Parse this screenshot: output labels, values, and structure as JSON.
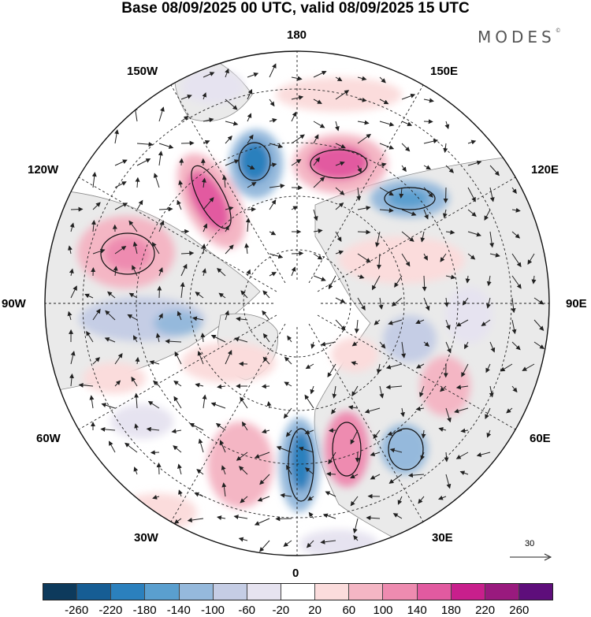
{
  "title": "Base 08/09/2025 00 UTC, valid 08/09/2025 15 UTC",
  "logo": "MODES",
  "logo_mark": "©",
  "longitude_labels": {
    "lon_180": "180",
    "lon_150E": "150E",
    "lon_120E": "120E",
    "lon_90E": "90E",
    "lon_60E": "60E",
    "lon_30E": "30E",
    "lon_0": "0",
    "lon_30W": "30W",
    "lon_60W": "60W",
    "lon_90W": "90W",
    "lon_120W": "120W",
    "lon_150W": "150W"
  },
  "reference_vector": {
    "value": "30"
  },
  "colorbar": {
    "colors": [
      "#0d3a5c",
      "#165d94",
      "#2b80bd",
      "#5a9fcf",
      "#95b9dc",
      "#c5cde5",
      "#e6e3f0",
      "#ffffff",
      "#fbdcdc",
      "#f4b6c4",
      "#ee8bb0",
      "#e25aa0",
      "#c81f8c",
      "#991a7e",
      "#5e0e7b"
    ],
    "tick_labels": [
      "-260",
      "-220",
      "-180",
      "-140",
      "-100",
      "-60",
      "-20",
      "20",
      "60",
      "100",
      "140",
      "180",
      "220",
      "260"
    ]
  },
  "colors": {
    "land": "#eaeaea",
    "coast": "#777777",
    "grid": "#222222"
  }
}
